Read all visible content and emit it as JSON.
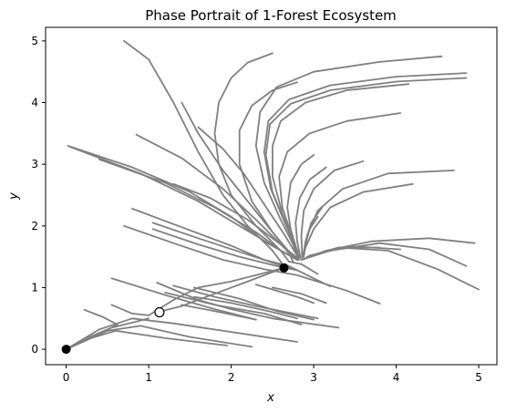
{
  "chart_data": {
    "type": "line",
    "title": "Phase Portrait of 1-Forest Ecosystem",
    "xlabel": "x",
    "ylabel": "y",
    "xlim": [
      -0.25,
      5.22
    ],
    "ylim": [
      -0.25,
      5.22
    ],
    "xticks": [
      0,
      1,
      2,
      3,
      4,
      5
    ],
    "yticks": [
      0,
      1,
      2,
      3,
      4,
      5
    ],
    "grid": false,
    "colors": {
      "trajectory": "#808080",
      "stable": "#000000",
      "unstable_fill": "#ffffff",
      "unstable_stroke": "#000000"
    },
    "equilibria": [
      {
        "x": 0,
        "y": 0,
        "kind": "stable"
      },
      {
        "x": 2.64,
        "y": 1.32,
        "kind": "stable"
      },
      {
        "x": 1.13,
        "y": 0.6,
        "kind": "unstable"
      }
    ],
    "series": [
      {
        "points": [
          [
            0.7,
            5.0
          ],
          [
            1.0,
            4.7
          ],
          [
            1.3,
            4.0
          ],
          [
            1.6,
            3.2
          ],
          [
            1.9,
            2.5
          ],
          [
            2.2,
            2.0
          ],
          [
            2.5,
            1.6
          ],
          [
            2.64,
            1.35
          ]
        ]
      },
      {
        "points": [
          [
            2.5,
            4.8
          ],
          [
            2.2,
            4.65
          ],
          [
            2.0,
            4.4
          ],
          [
            1.85,
            4.0
          ],
          [
            1.8,
            3.5
          ],
          [
            1.85,
            3.0
          ],
          [
            2.0,
            2.5
          ],
          [
            2.3,
            2.0
          ],
          [
            2.6,
            1.6
          ],
          [
            2.7,
            1.42
          ]
        ]
      },
      {
        "points": [
          [
            2.8,
            4.33
          ],
          [
            2.5,
            4.2
          ],
          [
            2.25,
            3.95
          ],
          [
            2.1,
            3.55
          ],
          [
            2.1,
            3.0
          ],
          [
            2.25,
            2.4
          ],
          [
            2.5,
            1.9
          ],
          [
            2.7,
            1.55
          ],
          [
            2.75,
            1.42
          ]
        ]
      },
      {
        "points": [
          [
            4.55,
            4.75
          ],
          [
            3.8,
            4.66
          ],
          [
            3.0,
            4.5
          ],
          [
            2.55,
            4.25
          ],
          [
            2.35,
            3.85
          ],
          [
            2.3,
            3.3
          ],
          [
            2.4,
            2.7
          ],
          [
            2.6,
            2.1
          ],
          [
            2.75,
            1.7
          ],
          [
            2.82,
            1.45
          ]
        ]
      },
      {
        "points": [
          [
            4.85,
            4.48
          ],
          [
            4.0,
            4.42
          ],
          [
            3.2,
            4.28
          ],
          [
            2.7,
            4.05
          ],
          [
            2.45,
            3.7
          ],
          [
            2.4,
            3.2
          ],
          [
            2.48,
            2.6
          ],
          [
            2.65,
            2.05
          ],
          [
            2.8,
            1.6
          ],
          [
            2.82,
            1.45
          ]
        ]
      },
      {
        "points": [
          [
            4.85,
            4.4
          ],
          [
            4.0,
            4.34
          ],
          [
            3.2,
            4.2
          ],
          [
            2.72,
            3.98
          ],
          [
            2.47,
            3.65
          ],
          [
            2.42,
            3.15
          ],
          [
            2.5,
            2.55
          ],
          [
            2.67,
            2.0
          ],
          [
            2.82,
            1.48
          ]
        ]
      },
      {
        "points": [
          [
            4.15,
            4.3
          ],
          [
            3.4,
            4.2
          ],
          [
            2.9,
            4.0
          ],
          [
            2.6,
            3.7
          ],
          [
            2.5,
            3.3
          ],
          [
            2.5,
            2.8
          ],
          [
            2.62,
            2.2
          ],
          [
            2.82,
            1.5
          ]
        ]
      },
      {
        "points": [
          [
            4.05,
            3.83
          ],
          [
            3.4,
            3.7
          ],
          [
            2.95,
            3.5
          ],
          [
            2.68,
            3.2
          ],
          [
            2.58,
            2.8
          ],
          [
            2.62,
            2.3
          ],
          [
            2.82,
            1.5
          ]
        ]
      },
      {
        "points": [
          [
            1.4,
            4.0
          ],
          [
            1.6,
            3.5
          ],
          [
            1.9,
            2.9
          ],
          [
            2.2,
            2.4
          ],
          [
            2.5,
            1.9
          ],
          [
            2.72,
            1.55
          ],
          [
            2.82,
            1.45
          ]
        ]
      },
      {
        "points": [
          [
            1.6,
            3.6
          ],
          [
            1.9,
            3.25
          ],
          [
            2.15,
            2.85
          ],
          [
            2.4,
            2.35
          ],
          [
            2.65,
            1.85
          ],
          [
            2.82,
            1.47
          ]
        ]
      },
      {
        "points": [
          [
            0.85,
            3.48
          ],
          [
            1.4,
            3.1
          ],
          [
            1.9,
            2.6
          ],
          [
            2.3,
            2.1
          ],
          [
            2.6,
            1.7
          ],
          [
            2.8,
            1.45
          ]
        ]
      },
      {
        "points": [
          [
            0.02,
            3.3
          ],
          [
            0.8,
            2.95
          ],
          [
            1.5,
            2.55
          ],
          [
            2.0,
            2.15
          ],
          [
            2.4,
            1.75
          ],
          [
            2.8,
            1.45
          ]
        ]
      },
      {
        "points": [
          [
            0.05,
            3.28
          ],
          [
            0.9,
            2.85
          ],
          [
            1.6,
            2.4
          ],
          [
            2.1,
            2.0
          ],
          [
            2.5,
            1.68
          ],
          [
            2.8,
            1.45
          ]
        ]
      },
      {
        "points": [
          [
            0.4,
            3.08
          ],
          [
            1.2,
            2.7
          ],
          [
            1.8,
            2.3
          ],
          [
            2.3,
            1.9
          ],
          [
            2.6,
            1.6
          ],
          [
            2.8,
            1.45
          ]
        ]
      },
      {
        "points": [
          [
            1.3,
            2.68
          ],
          [
            1.75,
            2.45
          ],
          [
            2.2,
            2.1
          ],
          [
            2.6,
            1.7
          ],
          [
            2.82,
            1.46
          ]
        ]
      },
      {
        "points": [
          [
            3.0,
            3.15
          ],
          [
            2.85,
            3.0
          ],
          [
            2.72,
            2.7
          ],
          [
            2.68,
            2.3
          ],
          [
            2.72,
            1.95
          ],
          [
            2.82,
            1.5
          ]
        ]
      },
      {
        "points": [
          [
            3.15,
            2.95
          ],
          [
            2.95,
            2.75
          ],
          [
            2.83,
            2.45
          ],
          [
            2.78,
            2.05
          ],
          [
            2.8,
            1.75
          ],
          [
            2.84,
            1.48
          ]
        ]
      },
      {
        "points": [
          [
            3.6,
            3.05
          ],
          [
            3.25,
            2.9
          ],
          [
            3.0,
            2.6
          ],
          [
            2.88,
            2.25
          ],
          [
            2.85,
            1.85
          ],
          [
            2.86,
            1.5
          ]
        ]
      },
      {
        "points": [
          [
            4.7,
            2.9
          ],
          [
            3.9,
            2.85
          ],
          [
            3.35,
            2.6
          ],
          [
            3.05,
            2.25
          ],
          [
            2.92,
            1.85
          ],
          [
            2.88,
            1.5
          ]
        ]
      },
      {
        "points": [
          [
            4.2,
            2.68
          ],
          [
            3.6,
            2.55
          ],
          [
            3.2,
            2.3
          ],
          [
            3.0,
            1.95
          ],
          [
            2.9,
            1.65
          ],
          [
            2.86,
            1.48
          ]
        ]
      },
      {
        "points": [
          [
            3.05,
            2.15
          ],
          [
            2.95,
            1.95
          ],
          [
            2.9,
            1.7
          ],
          [
            2.87,
            1.5
          ]
        ]
      },
      {
        "points": [
          [
            3.1,
            2.3
          ],
          [
            2.97,
            2.05
          ],
          [
            2.9,
            1.75
          ],
          [
            2.87,
            1.5
          ]
        ]
      },
      {
        "points": [
          [
            4.95,
            1.72
          ],
          [
            4.4,
            1.8
          ],
          [
            3.7,
            1.75
          ],
          [
            3.15,
            1.6
          ],
          [
            2.85,
            1.45
          ]
        ]
      },
      {
        "points": [
          [
            4.85,
            1.35
          ],
          [
            4.4,
            1.62
          ],
          [
            3.8,
            1.72
          ],
          [
            3.2,
            1.6
          ],
          [
            2.85,
            1.45
          ]
        ]
      },
      {
        "points": [
          [
            5.0,
            0.97
          ],
          [
            4.5,
            1.3
          ],
          [
            3.9,
            1.6
          ],
          [
            3.3,
            1.65
          ],
          [
            2.85,
            1.45
          ]
        ]
      },
      {
        "points": [
          [
            3.8,
            1.65
          ],
          [
            3.3,
            1.65
          ],
          [
            2.92,
            1.5
          ]
        ]
      },
      {
        "points": [
          [
            4.05,
            1.62
          ],
          [
            3.45,
            1.67
          ],
          [
            2.95,
            1.52
          ]
        ]
      },
      {
        "points": [
          [
            3.05,
            1.22
          ],
          [
            2.85,
            1.38
          ],
          [
            2.7,
            1.42
          ]
        ]
      },
      {
        "points": [
          [
            0.7,
            2.0
          ],
          [
            1.3,
            1.72
          ],
          [
            1.9,
            1.45
          ],
          [
            2.4,
            1.3
          ],
          [
            2.8,
            1.2
          ],
          [
            3.4,
            0.95
          ],
          [
            3.8,
            0.74
          ]
        ]
      },
      {
        "points": [
          [
            0.8,
            2.28
          ],
          [
            1.4,
            1.98
          ],
          [
            2.0,
            1.68
          ],
          [
            2.4,
            1.45
          ],
          [
            2.7,
            1.35
          ],
          [
            3.0,
            1.15
          ],
          [
            3.2,
            1.02
          ]
        ]
      },
      {
        "points": [
          [
            1.05,
            2.05
          ],
          [
            1.6,
            1.8
          ],
          [
            2.1,
            1.58
          ],
          [
            2.55,
            1.38
          ],
          [
            2.8,
            1.28
          ]
        ]
      },
      {
        "points": [
          [
            1.05,
            1.95
          ],
          [
            1.6,
            1.7
          ],
          [
            2.1,
            1.5
          ],
          [
            2.55,
            1.35
          ],
          [
            2.8,
            1.28
          ]
        ]
      },
      {
        "points": [
          [
            0.55,
            0.72
          ],
          [
            0.8,
            0.58
          ],
          [
            1.0,
            0.55
          ],
          [
            1.3,
            0.8
          ],
          [
            1.6,
            1.0
          ],
          [
            2.0,
            1.1
          ],
          [
            2.35,
            1.22
          ],
          [
            2.64,
            1.32
          ]
        ]
      },
      {
        "points": [
          [
            0.55,
            1.15
          ],
          [
            1.2,
            0.88
          ],
          [
            1.8,
            0.65
          ],
          [
            2.3,
            0.48
          ]
        ]
      },
      {
        "points": [
          [
            1.1,
            1.08
          ],
          [
            1.6,
            0.8
          ],
          [
            2.0,
            0.65
          ],
          [
            2.5,
            0.5
          ],
          [
            3.3,
            0.35
          ]
        ]
      },
      {
        "points": [
          [
            1.3,
            1.03
          ],
          [
            1.8,
            0.85
          ],
          [
            2.3,
            0.7
          ],
          [
            3.05,
            0.5
          ]
        ]
      },
      {
        "points": [
          [
            1.55,
            1.0
          ],
          [
            2.1,
            0.82
          ],
          [
            2.55,
            0.62
          ],
          [
            3.0,
            0.48
          ]
        ]
      },
      {
        "points": [
          [
            1.55,
            0.85
          ],
          [
            2.0,
            0.75
          ],
          [
            2.45,
            0.62
          ],
          [
            2.8,
            0.5
          ]
        ]
      },
      {
        "points": [
          [
            1.1,
            0.6
          ],
          [
            1.4,
            0.7
          ],
          [
            1.8,
            0.9
          ],
          [
            2.1,
            1.05
          ],
          [
            2.4,
            1.2
          ],
          [
            2.64,
            1.32
          ]
        ]
      },
      {
        "points": [
          [
            1.4,
            0.72
          ],
          [
            1.8,
            0.62
          ],
          [
            2.3,
            0.48
          ]
        ]
      },
      {
        "points": [
          [
            1.2,
            0.92
          ],
          [
            1.8,
            0.72
          ],
          [
            2.4,
            0.58
          ],
          [
            2.85,
            0.4
          ]
        ]
      },
      {
        "points": [
          [
            2.5,
            1.0
          ],
          [
            2.85,
            0.9
          ],
          [
            3.15,
            0.75
          ]
        ]
      },
      {
        "points": [
          [
            2.3,
            1.05
          ],
          [
            2.8,
            0.85
          ],
          [
            3.0,
            0.75
          ]
        ]
      },
      {
        "points": [
          [
            0.02,
            0.02
          ],
          [
            0.25,
            0.18
          ],
          [
            0.55,
            0.35
          ],
          [
            0.85,
            0.45
          ],
          [
            1.0,
            0.5
          ]
        ]
      },
      {
        "points": [
          [
            0.22,
            0.64
          ],
          [
            0.45,
            0.52
          ],
          [
            0.62,
            0.4
          ],
          [
            0.5,
            0.32
          ],
          [
            0.2,
            0.15
          ],
          [
            0.0,
            0.0
          ]
        ]
      },
      {
        "points": [
          [
            1.95,
            0.06
          ],
          [
            1.2,
            0.18
          ],
          [
            0.6,
            0.3
          ],
          [
            0.3,
            0.18
          ],
          [
            0.0,
            0.0
          ]
        ]
      },
      {
        "points": [
          [
            2.25,
            0.04
          ],
          [
            1.5,
            0.2
          ],
          [
            0.9,
            0.38
          ],
          [
            0.5,
            0.3
          ],
          [
            0.0,
            0.0
          ]
        ]
      },
      {
        "points": [
          [
            2.8,
            0.12
          ],
          [
            2.0,
            0.28
          ],
          [
            1.3,
            0.42
          ],
          [
            0.8,
            0.5
          ],
          [
            0.4,
            0.32
          ],
          [
            0.0,
            0.0
          ]
        ]
      }
    ]
  }
}
